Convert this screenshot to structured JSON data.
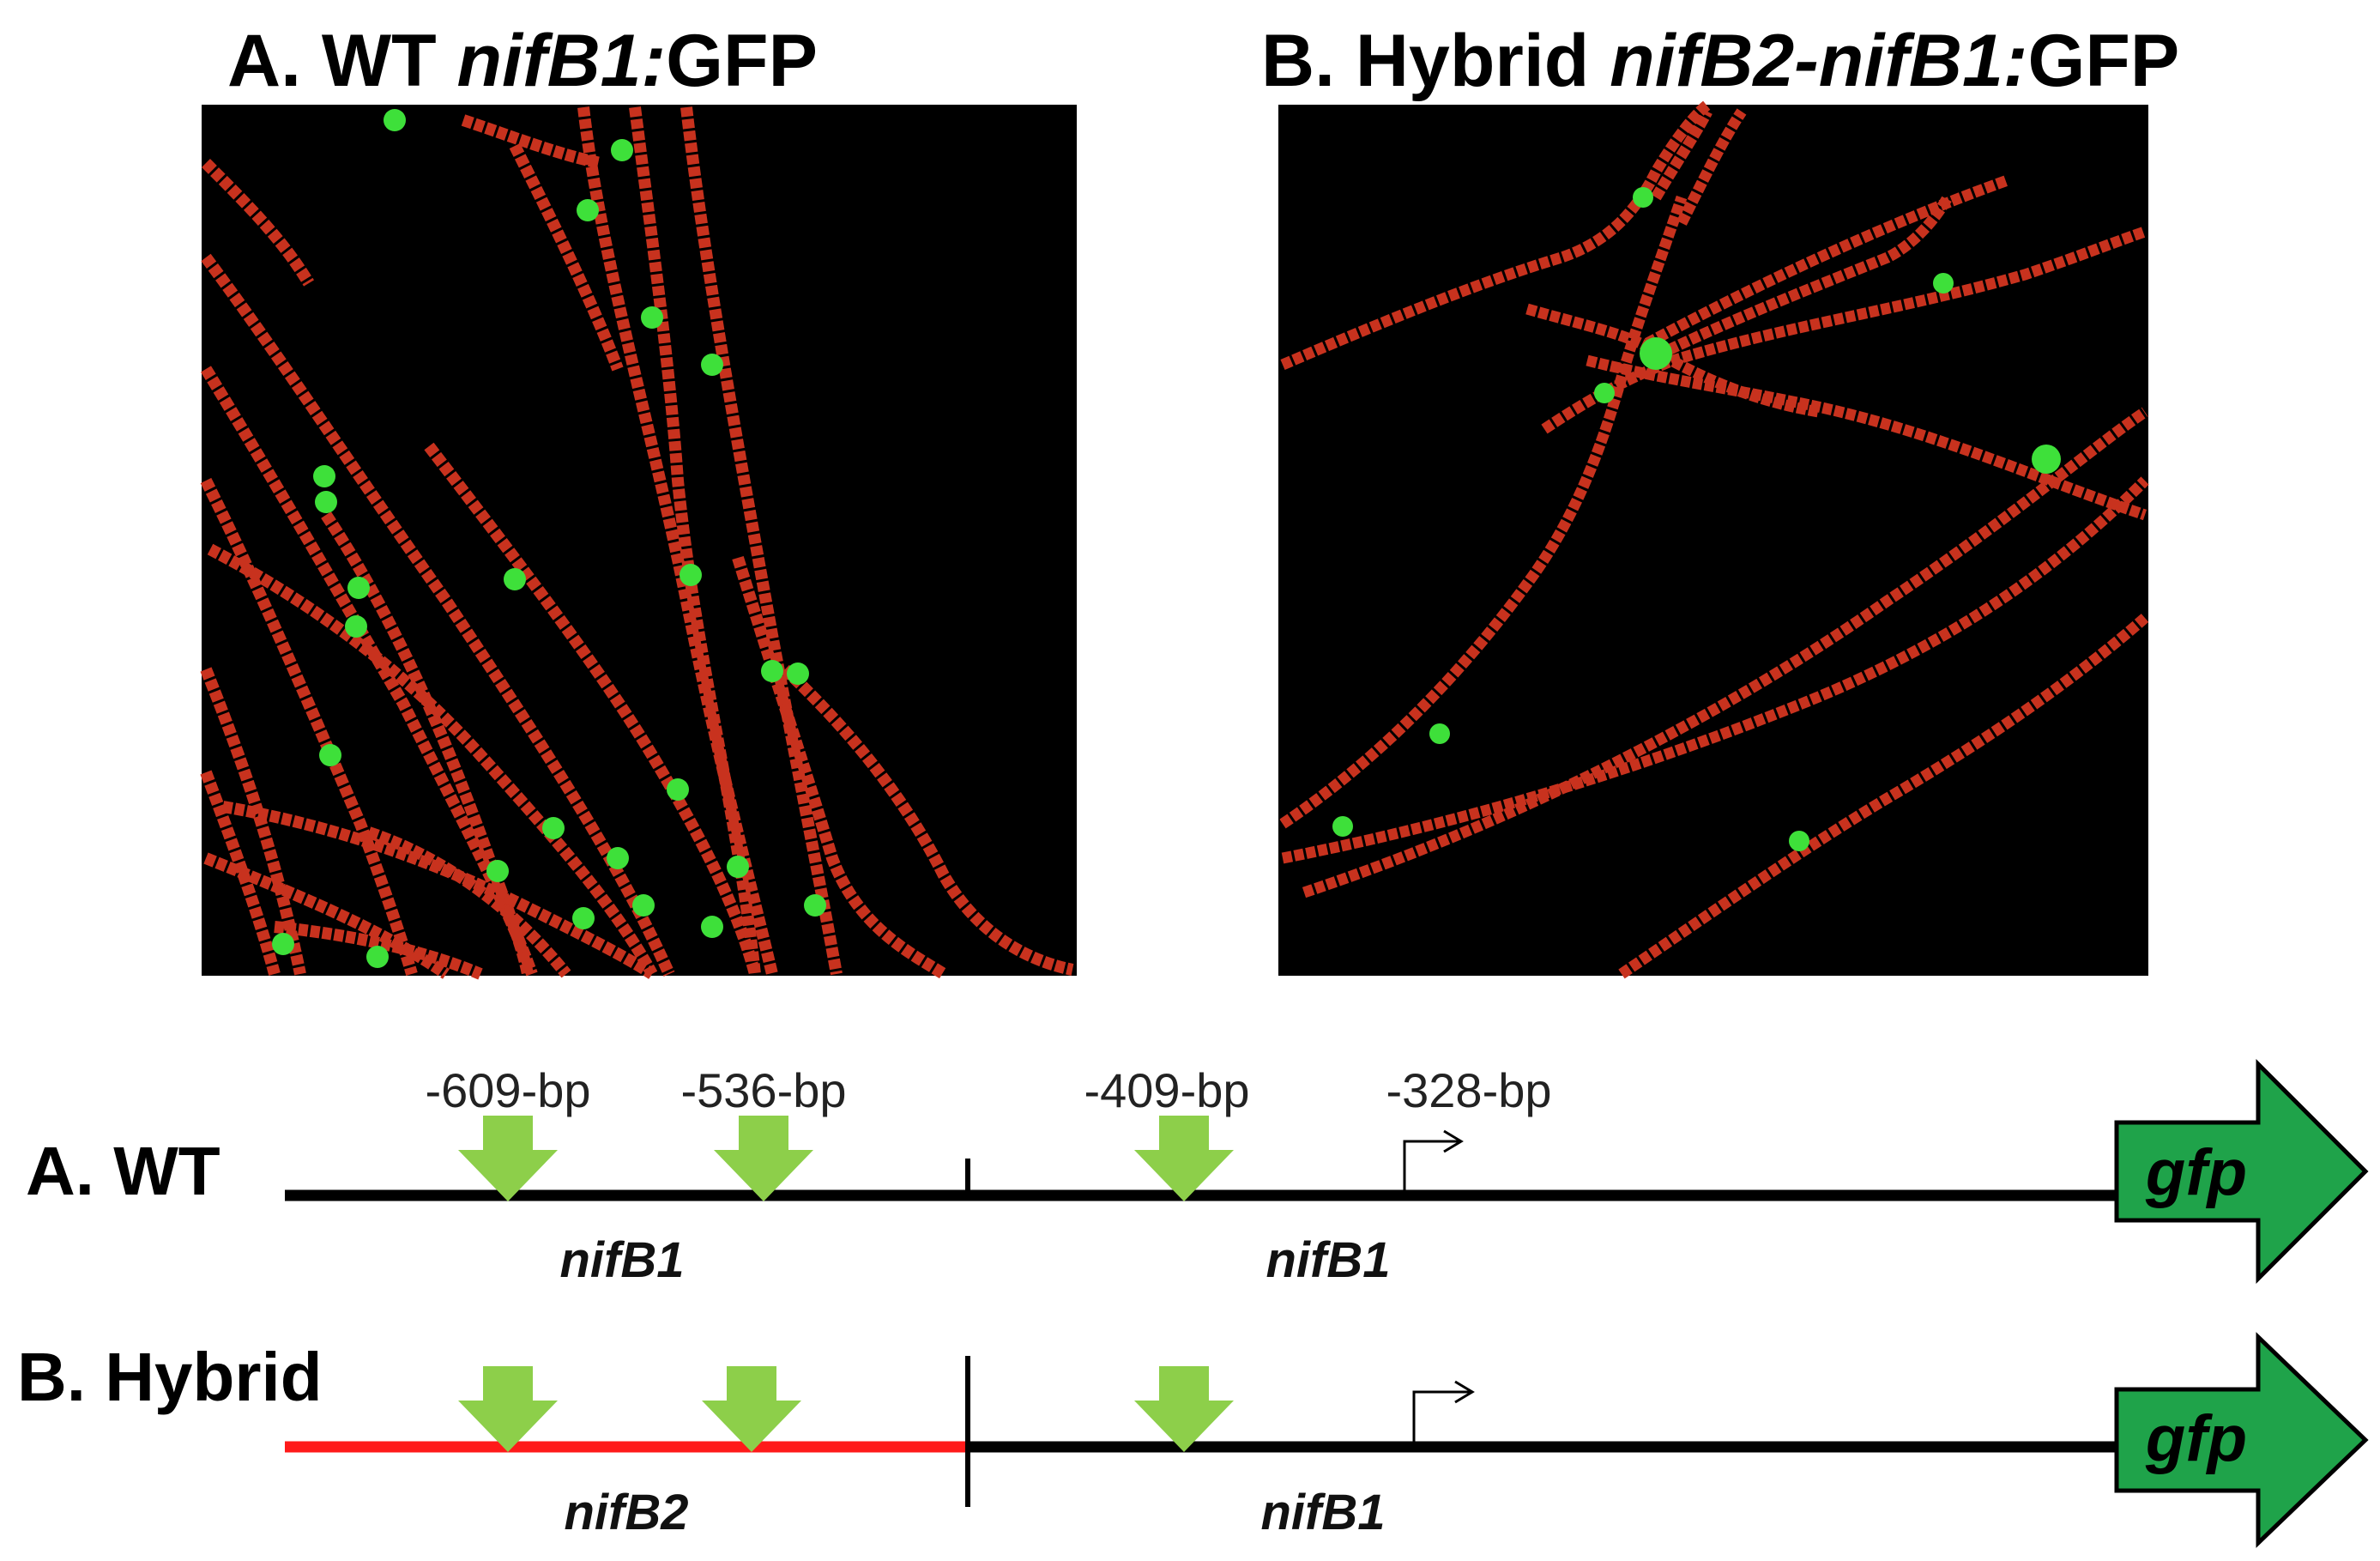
{
  "panel_a": {
    "title_prefix": "A. WT ",
    "title_gene": "nifB1:",
    "title_suffix": "GFP"
  },
  "panel_b": {
    "title_prefix": "B. Hybrid ",
    "title_gene": "nifB2-nifB1:",
    "title_suffix": "GFP"
  },
  "colors": {
    "filament_red": "#c8321e",
    "heterocyst_green": "#3ee03a",
    "arrow_green": "#8dcf4a",
    "gfp_green": "#1fa34a",
    "hybrid_red": "#ff1a1a",
    "line_black": "#000000"
  },
  "diagram": {
    "positions": {
      "p609": "-609-bp",
      "p536": "-536-bp",
      "p409": "-409-bp",
      "p328": "-328-bp"
    },
    "row_a": {
      "label": "A. WT",
      "left_segment": "nifB1",
      "right_segment": "nifB1",
      "reporter": "gfp"
    },
    "row_b": {
      "label": "B. Hybrid",
      "left_segment": "nifB2",
      "right_segment": "nifB1",
      "reporter": "gfp"
    }
  }
}
